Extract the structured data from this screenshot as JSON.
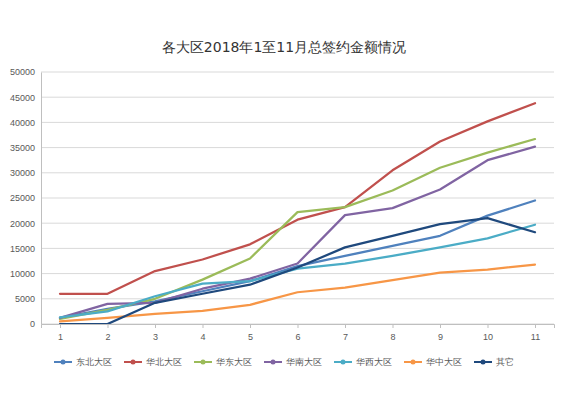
{
  "chart_data": {
    "type": "line",
    "title": "各大区2018年1至11月总签约金额情况",
    "categories": [
      "1",
      "2",
      "3",
      "4",
      "5",
      "6",
      "7",
      "8",
      "9",
      "10",
      "11"
    ],
    "series": [
      {
        "name": "东北大区",
        "color": "#4f81bd",
        "values": [
          1200,
          3000,
          4500,
          6500,
          8500,
          11500,
          13500,
          15500,
          17500,
          21500,
          24500
        ]
      },
      {
        "name": "华北大区",
        "color": "#c0504d",
        "values": [
          6000,
          6000,
          10500,
          12800,
          15800,
          20700,
          23200,
          30500,
          36200,
          40200,
          43800
        ]
      },
      {
        "name": "华东大区",
        "color": "#9bbb59",
        "values": [
          1000,
          2800,
          5000,
          8800,
          13000,
          22200,
          23200,
          26500,
          31000,
          34000,
          36700
        ]
      },
      {
        "name": "华南大区",
        "color": "#8064a2",
        "values": [
          1200,
          4000,
          4200,
          7000,
          9000,
          12000,
          21600,
          23000,
          26700,
          32500,
          35200
        ]
      },
      {
        "name": "华西大区",
        "color": "#4bacc6",
        "values": [
          1300,
          2500,
          5500,
          8000,
          8500,
          11000,
          12000,
          13500,
          15200,
          17000,
          19700
        ]
      },
      {
        "name": "华中大区",
        "color": "#f79646",
        "values": [
          500,
          1200,
          2000,
          2600,
          3800,
          6300,
          7200,
          8700,
          10200,
          10800,
          11800
        ]
      },
      {
        "name": "其它",
        "color": "#1f497d",
        "values": [
          0,
          0,
          4200,
          6000,
          7800,
          11200,
          15200,
          17500,
          19800,
          21000,
          18200
        ]
      }
    ],
    "ylim": [
      0,
      50000
    ],
    "yticks": [
      0,
      5000,
      10000,
      15000,
      20000,
      25000,
      30000,
      35000,
      40000,
      45000,
      50000
    ],
    "grid": true,
    "legend": "bottom"
  }
}
